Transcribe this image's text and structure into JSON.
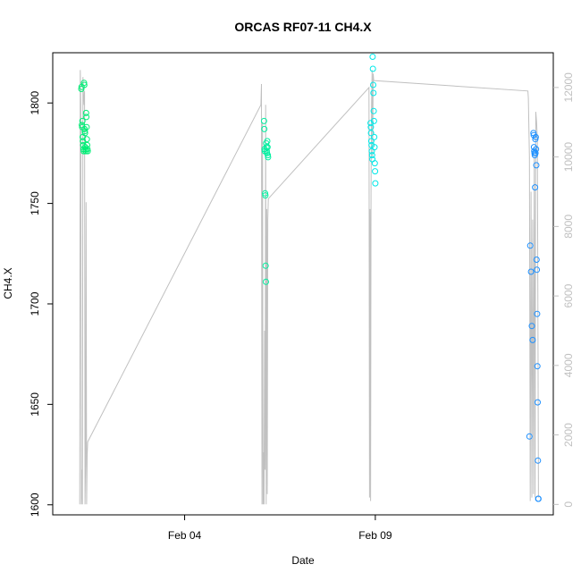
{
  "chart_data": {
    "type": "scatter",
    "title": "ORCAS RF07-11 CH4.X",
    "xlabel": "Date",
    "ylabel": "CH4.X",
    "xlim": [
      "2016-01-31T13:00",
      "2016-02-13T16:00"
    ],
    "ylim": [
      1595,
      1825
    ],
    "y2lim": [
      -300,
      13000
    ],
    "x_ticks": [
      {
        "value": "2016-02-04T00:00",
        "label": "Feb 04"
      },
      {
        "value": "2016-02-09T00:00",
        "label": "Feb 09"
      }
    ],
    "y_ticks": [
      1600,
      1650,
      1700,
      1750,
      1800
    ],
    "y2_ticks": [
      0,
      2000,
      4000,
      6000,
      8000,
      10000,
      12000
    ],
    "colors": {
      "rf07": "#00ee76",
      "rf08": "#00f0a0",
      "rf09": "#00e8e8",
      "rf10": "#1e90ff",
      "altitude_line": "#c0c0c0"
    },
    "series": [
      {
        "key": "rf07",
        "points": [
          [
            "2016-02-01T07:00",
            1807
          ],
          [
            "2016-02-01T07:10",
            1808
          ],
          [
            "2016-02-01T07:20",
            1789
          ],
          [
            "2016-02-01T07:30",
            1788
          ],
          [
            "2016-02-01T07:40",
            1791
          ],
          [
            "2016-02-01T07:50",
            1783
          ],
          [
            "2016-02-01T08:00",
            1781
          ],
          [
            "2016-02-01T08:10",
            1779
          ],
          [
            "2016-02-01T08:20",
            1777
          ],
          [
            "2016-02-01T08:30",
            1776
          ],
          [
            "2016-02-01T08:40",
            1810
          ],
          [
            "2016-02-01T08:50",
            1809
          ],
          [
            "2016-02-01T09:00",
            1787
          ],
          [
            "2016-02-01T09:10",
            1786
          ],
          [
            "2016-02-01T09:20",
            1785
          ],
          [
            "2016-02-01T09:30",
            1778
          ],
          [
            "2016-02-01T09:40",
            1777
          ],
          [
            "2016-02-01T09:50",
            1776
          ],
          [
            "2016-02-01T10:00",
            1795
          ],
          [
            "2016-02-01T10:10",
            1793
          ],
          [
            "2016-02-01T10:20",
            1788
          ],
          [
            "2016-02-01T10:30",
            1782
          ],
          [
            "2016-02-01T10:40",
            1779
          ],
          [
            "2016-02-01T10:50",
            1777
          ],
          [
            "2016-02-01T11:00",
            1776
          ]
        ]
      },
      {
        "key": "rf08",
        "points": [
          [
            "2016-02-06T02:00",
            1791
          ],
          [
            "2016-02-06T02:10",
            1787
          ],
          [
            "2016-02-06T02:20",
            1777
          ],
          [
            "2016-02-06T02:30",
            1776
          ],
          [
            "2016-02-06T02:40",
            1755
          ],
          [
            "2016-02-06T02:50",
            1754
          ],
          [
            "2016-02-06T03:00",
            1719
          ],
          [
            "2016-02-06T03:10",
            1711
          ],
          [
            "2016-02-06T03:20",
            1780
          ],
          [
            "2016-02-06T03:30",
            1778
          ],
          [
            "2016-02-06T03:40",
            1776
          ],
          [
            "2016-02-06T03:50",
            1775
          ],
          [
            "2016-02-06T04:00",
            1781
          ],
          [
            "2016-02-06T04:10",
            1778
          ],
          [
            "2016-02-06T04:20",
            1774
          ],
          [
            "2016-02-06T04:30",
            1773
          ]
        ]
      },
      {
        "key": "rf09",
        "points": [
          [
            "2016-02-08T21:00",
            1790
          ],
          [
            "2016-02-08T21:10",
            1788
          ],
          [
            "2016-02-08T21:20",
            1785
          ],
          [
            "2016-02-08T21:30",
            1781
          ],
          [
            "2016-02-08T21:40",
            1779
          ],
          [
            "2016-02-08T21:50",
            1776
          ],
          [
            "2016-02-08T22:00",
            1774
          ],
          [
            "2016-02-08T22:10",
            1772
          ],
          [
            "2016-02-08T22:20",
            1823
          ],
          [
            "2016-02-08T22:30",
            1817
          ],
          [
            "2016-02-08T22:40",
            1809
          ],
          [
            "2016-02-08T22:50",
            1805
          ],
          [
            "2016-02-08T23:00",
            1796
          ],
          [
            "2016-02-08T23:10",
            1791
          ],
          [
            "2016-02-08T23:20",
            1783
          ],
          [
            "2016-02-08T23:30",
            1778
          ],
          [
            "2016-02-08T23:40",
            1770
          ],
          [
            "2016-02-08T23:50",
            1766
          ],
          [
            "2016-02-09T00:00",
            1760
          ]
        ]
      },
      {
        "key": "rf10",
        "points": [
          [
            "2016-02-13T01:00",
            1634
          ],
          [
            "2016-02-13T01:30",
            1729
          ],
          [
            "2016-02-13T02:00",
            1716
          ],
          [
            "2016-02-13T02:30",
            1689
          ],
          [
            "2016-02-13T03:00",
            1682
          ],
          [
            "2016-02-13T03:30",
            1785
          ],
          [
            "2016-02-13T03:40",
            1784
          ],
          [
            "2016-02-13T03:50",
            1778
          ],
          [
            "2016-02-13T04:00",
            1776
          ],
          [
            "2016-02-13T04:10",
            1775
          ],
          [
            "2016-02-13T04:20",
            1774
          ],
          [
            "2016-02-13T04:30",
            1758
          ],
          [
            "2016-02-13T04:40",
            1782
          ],
          [
            "2016-02-13T04:50",
            1775
          ],
          [
            "2016-02-13T05:00",
            1783
          ],
          [
            "2016-02-13T05:10",
            1777
          ],
          [
            "2016-02-13T05:20",
            1769
          ],
          [
            "2016-02-13T05:30",
            1722
          ],
          [
            "2016-02-13T05:40",
            1717
          ],
          [
            "2016-02-13T05:50",
            1695
          ],
          [
            "2016-02-13T06:00",
            1669
          ],
          [
            "2016-02-13T06:10",
            1651
          ],
          [
            "2016-02-13T06:20",
            1622
          ],
          [
            "2016-02-13T06:30",
            1603
          ],
          [
            "2016-02-13T06:40",
            1603
          ]
        ]
      }
    ],
    "altitude_line": [
      [
        "2016-02-01T06:00",
        0
      ],
      [
        "2016-02-01T06:20",
        12500
      ],
      [
        "2016-02-01T06:40",
        11500
      ],
      [
        "2016-02-01T07:00",
        0
      ],
      [
        "2016-02-01T07:20",
        1000
      ],
      [
        "2016-02-01T07:40",
        0
      ],
      [
        "2016-02-01T08:00",
        12300
      ],
      [
        "2016-02-01T08:20",
        11800
      ],
      [
        "2016-02-01T08:40",
        11500
      ],
      [
        "2016-02-01T09:00",
        11900
      ],
      [
        "2016-02-01T09:20",
        0
      ],
      [
        "2016-02-01T09:40",
        1200
      ],
      [
        "2016-02-01T10:00",
        8700
      ],
      [
        "2016-02-01T10:20",
        0
      ],
      [
        "2016-02-01T10:40",
        1400
      ],
      [
        "2016-02-01T11:00",
        1800
      ],
      [
        "2016-02-06T00:00",
        11500
      ],
      [
        "2016-02-06T00:20",
        12100
      ],
      [
        "2016-02-06T00:40",
        0
      ],
      [
        "2016-02-06T01:00",
        11000
      ],
      [
        "2016-02-06T01:20",
        0
      ],
      [
        "2016-02-06T01:40",
        1500
      ],
      [
        "2016-02-06T02:00",
        0
      ],
      [
        "2016-02-06T02:20",
        5000
      ],
      [
        "2016-02-06T02:40",
        1000
      ],
      [
        "2016-02-06T03:00",
        11500
      ],
      [
        "2016-02-06T03:20",
        0
      ],
      [
        "2016-02-06T03:40",
        8500
      ],
      [
        "2016-02-06T04:00",
        300
      ],
      [
        "2016-02-06T04:20",
        8200
      ],
      [
        "2016-02-06T04:40",
        8800
      ],
      [
        "2016-02-08T20:00",
        12000
      ],
      [
        "2016-02-08T20:20",
        200
      ],
      [
        "2016-02-08T20:40",
        8500
      ],
      [
        "2016-02-08T21:00",
        100
      ],
      [
        "2016-02-08T21:20",
        9000
      ],
      [
        "2016-02-08T21:40",
        11500
      ],
      [
        "2016-02-08T22:00",
        12500
      ],
      [
        "2016-02-08T22:20",
        10000
      ],
      [
        "2016-02-08T22:40",
        12400
      ],
      [
        "2016-02-08T23:00",
        12200
      ],
      [
        "2016-02-13T00:00",
        11900
      ],
      [
        "2016-02-13T00:20",
        11700
      ],
      [
        "2016-02-13T01:00",
        10000
      ],
      [
        "2016-02-13T01:30",
        100
      ],
      [
        "2016-02-13T02:00",
        9000
      ],
      [
        "2016-02-13T02:30",
        200
      ],
      [
        "2016-02-13T03:00",
        8200
      ],
      [
        "2016-02-13T03:30",
        300
      ],
      [
        "2016-02-13T04:00",
        10000
      ],
      [
        "2016-02-13T04:30",
        200
      ],
      [
        "2016-02-13T05:00",
        11300
      ],
      [
        "2016-02-13T05:30",
        11000
      ],
      [
        "2016-02-13T06:00",
        10500
      ],
      [
        "2016-02-13T06:40",
        200
      ]
    ]
  }
}
